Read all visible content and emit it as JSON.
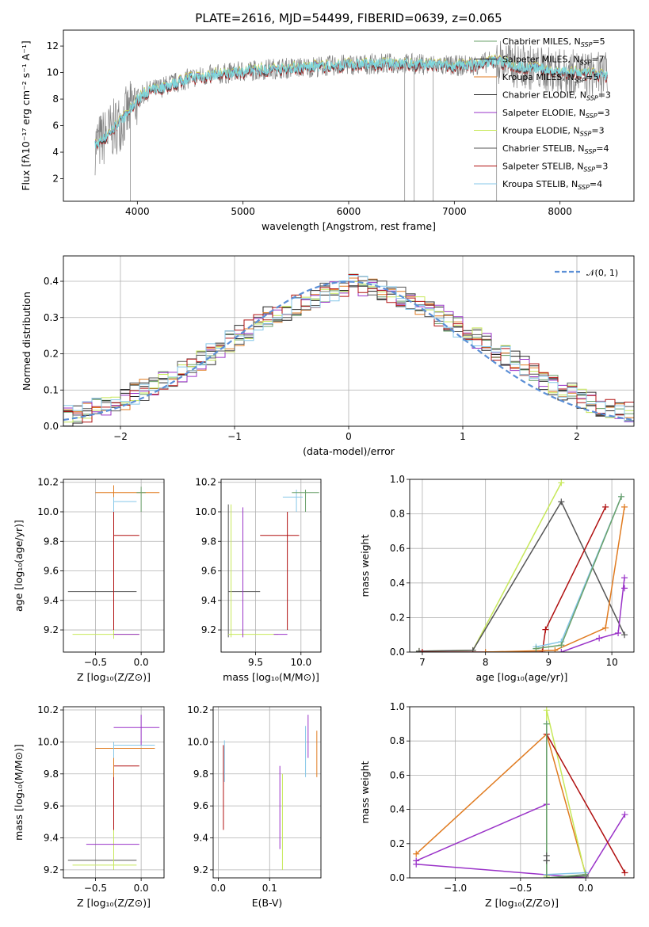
{
  "figure": {
    "title": "PLATE=2616, MJD=54499, FIBERID=0639, z=0.065"
  },
  "colors": [
    "#6aa06a",
    "#1f1f1f",
    "#e07b20",
    "#2b2b2b",
    "#9a33c8",
    "#c7e85a",
    "#555555",
    "#b01010",
    "#86c7e8"
  ],
  "chart_data": [
    {
      "id": "spectrum",
      "type": "line",
      "xlabel": "wavelength [Angstrom, rest frame]",
      "ylabel": "Flux [fλ10⁻¹⁷ erg cm⁻² s⁻¹ A⁻¹]",
      "xlim": [
        3300,
        8700
      ],
      "ylim": [
        0.3,
        13.2
      ],
      "xticks": [
        4000,
        5000,
        6000,
        7000,
        8000
      ],
      "yticks": [
        2,
        4,
        6,
        8,
        10,
        12
      ],
      "grid": false,
      "legend_position": "right",
      "legend": [
        "Chabrier MILES, N_SSP=5",
        "Salpeter MILES, N_SSP=7",
        "Kroupa MILES, N_SSP=5",
        "Chabrier ELODIE, N_SSP=3",
        "Salpeter ELODIE, N_SSP=3",
        "Kroupa ELODIE, N_SSP=3",
        "Chabrier STELIB, N_SSP=4",
        "Salpeter STELIB, N_SSP=3",
        "Kroupa STELIB, N_SSP=4"
      ],
      "data_color": "#808080",
      "model_color": "#7fd6dc",
      "continuum": {
        "x": [
          3600,
          3700,
          3800,
          3900,
          4000,
          4100,
          4200,
          4300,
          4400,
          4500,
          4700,
          5000,
          5300,
          5600,
          6000,
          6500,
          7000,
          7200,
          7400,
          7600,
          8000,
          8400
        ],
        "y": [
          4.5,
          5.2,
          6.0,
          6.8,
          8.0,
          8.6,
          8.8,
          9.1,
          9.3,
          9.6,
          9.8,
          10.1,
          10.3,
          10.4,
          10.6,
          10.7,
          10.5,
          10.6,
          10.9,
          10.5,
          10.1,
          9.8
        ]
      }
    },
    {
      "id": "residuals",
      "type": "histogram",
      "xlabel": "(data-model)/error",
      "ylabel": "Normed distribution",
      "xlim": [
        -2.5,
        2.5
      ],
      "ylim": [
        0,
        0.47
      ],
      "xticks": [
        -2,
        -1,
        0,
        1,
        2
      ],
      "xtick_labels": [
        "−2",
        "−1",
        "0",
        "1",
        "2"
      ],
      "yticks": [
        0.0,
        0.1,
        0.2,
        0.3,
        0.4
      ],
      "grid": true,
      "legend": "𝒩(0, 1)",
      "legend_position": "top-right",
      "gaussian_color": "#5b8fd6",
      "hist_base": [
        0.03,
        0.035,
        0.04,
        0.05,
        0.055,
        0.06,
        0.075,
        0.09,
        0.1,
        0.115,
        0.125,
        0.14,
        0.15,
        0.165,
        0.18,
        0.2,
        0.215,
        0.235,
        0.25,
        0.265,
        0.28,
        0.3,
        0.31,
        0.32,
        0.335,
        0.345,
        0.355,
        0.365,
        0.375,
        0.38,
        0.39,
        0.385,
        0.38,
        0.375,
        0.37,
        0.36,
        0.345,
        0.335,
        0.32,
        0.305,
        0.29,
        0.275,
        0.26,
        0.245,
        0.23,
        0.21,
        0.195,
        0.18,
        0.165,
        0.15,
        0.13,
        0.115,
        0.1,
        0.09,
        0.075,
        0.065,
        0.055,
        0.05,
        0.045,
        0.04
      ]
    },
    {
      "id": "z-age",
      "type": "errorbar",
      "xlabel": "Z [log₁₀(Z/Z⊙)]",
      "ylabel": "age  [log₁₀(age/yr)]",
      "xlim": [
        -0.85,
        0.25
      ],
      "ylim": [
        9.05,
        10.22
      ],
      "xticks": [
        -0.5,
        0.0
      ],
      "xtick_labels": [
        "−0.5",
        "0.0"
      ],
      "yticks": [
        9.2,
        9.4,
        9.6,
        9.8,
        10.0,
        10.2
      ],
      "grid": true,
      "points": [
        {
          "x": -0.3,
          "y": 9.46,
          "xlo": -0.8,
          "xhi": -0.05,
          "ylo": 9.46,
          "yhi": 9.46,
          "c": 6
        },
        {
          "x": -0.3,
          "y": 9.17,
          "xlo": -0.75,
          "xhi": -0.02,
          "ylo": 9.14,
          "yhi": 9.2,
          "c": 5
        },
        {
          "x": -0.3,
          "y": 9.84,
          "xlo": -0.3,
          "xhi": -0.02,
          "ylo": 9.2,
          "yhi": 10.0,
          "c": 7
        },
        {
          "x": -0.3,
          "y": 10.13,
          "xlo": -0.5,
          "xhi": 0.2,
          "ylo": 10.03,
          "yhi": 10.18,
          "c": 2
        },
        {
          "x": -0.3,
          "y": 10.07,
          "xlo": -0.3,
          "xhi": -0.05,
          "ylo": 10.0,
          "yhi": 10.1,
          "c": 8
        },
        {
          "x": -0.3,
          "y": 9.17,
          "xlo": -0.3,
          "xhi": -0.02,
          "ylo": 9.17,
          "yhi": 9.17,
          "c": 4
        },
        {
          "x": 0.0,
          "y": 10.13,
          "xlo": -0.05,
          "xhi": 0.05,
          "ylo": 10.0,
          "yhi": 10.17,
          "c": 0
        }
      ]
    },
    {
      "id": "mass-age",
      "type": "errorbar",
      "xlabel": "mass [log₁₀(M/M⊙)]",
      "xlim": [
        9.12,
        10.22
      ],
      "ylim": [
        9.05,
        10.22
      ],
      "xticks": [
        9.5,
        10.0
      ],
      "xtick_labels": [
        "9.5",
        "10.0"
      ],
      "yticks": [
        9.2,
        9.4,
        9.6,
        9.8,
        10.0,
        10.2
      ],
      "grid": true,
      "points": [
        {
          "x": 9.2,
          "y": 9.46,
          "xlo": 9.2,
          "xhi": 9.55,
          "ylo": 9.15,
          "yhi": 10.05,
          "c": 6
        },
        {
          "x": 9.23,
          "y": 9.17,
          "xlo": 9.2,
          "xhi": 9.75,
          "ylo": 9.15,
          "yhi": 10.05,
          "c": 5
        },
        {
          "x": 9.85,
          "y": 9.84,
          "xlo": 9.55,
          "xhi": 9.98,
          "ylo": 9.2,
          "yhi": 10.0,
          "c": 7
        },
        {
          "x": 9.36,
          "y": 9.17,
          "xlo": 9.36,
          "xhi": 9.36,
          "ylo": 9.15,
          "yhi": 10.03,
          "c": 4
        },
        {
          "x": 9.8,
          "y": 9.17,
          "xlo": 9.7,
          "xhi": 9.85,
          "ylo": 9.17,
          "yhi": 9.17,
          "c": 4
        },
        {
          "x": 9.95,
          "y": 10.1,
          "xlo": 9.8,
          "xhi": 10.02,
          "ylo": 10.0,
          "yhi": 10.15,
          "c": 8
        },
        {
          "x": 10.05,
          "y": 10.13,
          "xlo": 9.9,
          "xhi": 10.2,
          "ylo": 10.0,
          "yhi": 10.15,
          "c": 0
        }
      ]
    },
    {
      "id": "age-weight",
      "type": "line",
      "xlabel": "age  [log₁₀(age/yr)]",
      "ylabel": "mass weight",
      "xlim": [
        6.8,
        10.35
      ],
      "ylim": [
        0.0,
        1.0
      ],
      "xticks": [
        7,
        8,
        9,
        10
      ],
      "yticks": [
        0.0,
        0.2,
        0.4,
        0.6,
        0.8,
        1.0
      ],
      "grid": true,
      "series": [
        {
          "c": 5,
          "x": [
            6.95,
            7.8,
            9.2
          ],
          "y": [
            0.005,
            0.01,
            0.98
          ]
        },
        {
          "c": 6,
          "x": [
            6.95,
            7.8,
            9.2,
            10.2
          ],
          "y": [
            0.005,
            0.01,
            0.87,
            0.1
          ]
        },
        {
          "c": 7,
          "x": [
            7.0,
            8.9,
            8.95,
            9.9
          ],
          "y": [
            0.0,
            0.0,
            0.13,
            0.84
          ]
        },
        {
          "c": 2,
          "x": [
            8.0,
            9.1,
            9.9,
            10.2
          ],
          "y": [
            0.0,
            0.01,
            0.14,
            0.84
          ]
        },
        {
          "c": 8,
          "x": [
            8.8,
            9.2,
            10.15
          ],
          "y": [
            0.03,
            0.06,
            0.9
          ]
        },
        {
          "c": 0,
          "x": [
            8.8,
            9.2,
            10.15
          ],
          "y": [
            0.02,
            0.04,
            0.9
          ]
        },
        {
          "c": 4,
          "x": [
            9.2,
            9.8,
            10.1,
            10.2
          ],
          "y": [
            0.0,
            0.08,
            0.11,
            0.43
          ]
        },
        {
          "c": 4,
          "x": [
            10.2
          ],
          "y": [
            0.37
          ]
        }
      ]
    },
    {
      "id": "z-mass",
      "type": "errorbar",
      "xlabel": "Z [log₁₀(Z/Z⊙)]",
      "ylabel": "mass [log₁₀(M/M⊙)]",
      "xlim": [
        -0.85,
        0.25
      ],
      "ylim": [
        9.15,
        10.22
      ],
      "xticks": [
        -0.5,
        0.0
      ],
      "xtick_labels": [
        "−0.5",
        "0.0"
      ],
      "yticks": [
        9.2,
        9.4,
        9.6,
        9.8,
        10.0,
        10.2
      ],
      "grid": true,
      "points": [
        {
          "x": -0.3,
          "y": 9.26,
          "xlo": -0.8,
          "xhi": -0.05,
          "ylo": 9.2,
          "yhi": 9.95,
          "c": 6
        },
        {
          "x": -0.3,
          "y": 9.23,
          "xlo": -0.75,
          "xhi": -0.05,
          "ylo": 9.2,
          "yhi": 9.95,
          "c": 5
        },
        {
          "x": -0.3,
          "y": 9.36,
          "xlo": -0.6,
          "xhi": -0.02,
          "ylo": 9.36,
          "yhi": 9.36,
          "c": 4
        },
        {
          "x": -0.3,
          "y": 9.85,
          "xlo": -0.3,
          "xhi": -0.02,
          "ylo": 9.45,
          "yhi": 9.85,
          "c": 7
        },
        {
          "x": -0.3,
          "y": 9.96,
          "xlo": -0.5,
          "xhi": 0.15,
          "ylo": 9.78,
          "yhi": 9.98,
          "c": 2
        },
        {
          "x": -0.3,
          "y": 9.98,
          "xlo": -0.3,
          "xhi": 0.15,
          "ylo": 9.9,
          "yhi": 10.0,
          "c": 8
        },
        {
          "x": 0.0,
          "y": 10.09,
          "xlo": -0.3,
          "xhi": 0.2,
          "ylo": 9.98,
          "yhi": 10.17,
          "c": 4
        }
      ]
    },
    {
      "id": "ebv-mass",
      "type": "errorbar",
      "xlabel": "E(B-V)",
      "xlim": [
        -0.01,
        0.2
      ],
      "ylim": [
        9.15,
        10.22
      ],
      "xticks": [
        0.0,
        0.1
      ],
      "xtick_labels": [
        "0.0",
        "0.1"
      ],
      "yticks": [
        9.2,
        9.4,
        9.6,
        9.8,
        10.0,
        10.2
      ],
      "grid": true,
      "points": [
        {
          "x": 0.01,
          "y": 9.85,
          "xlo": 0.01,
          "xhi": 0.01,
          "ylo": 9.45,
          "yhi": 9.98,
          "c": 7
        },
        {
          "x": 0.012,
          "y": 9.9,
          "xlo": 0.012,
          "xhi": 0.012,
          "ylo": 9.75,
          "yhi": 10.01,
          "c": 8
        },
        {
          "x": 0.12,
          "y": 9.6,
          "xlo": 0.12,
          "xhi": 0.12,
          "ylo": 9.33,
          "yhi": 9.85,
          "c": 4
        },
        {
          "x": 0.125,
          "y": 9.5,
          "xlo": 0.125,
          "xhi": 0.125,
          "ylo": 9.2,
          "yhi": 9.8,
          "c": 5
        },
        {
          "x": 0.17,
          "y": 9.95,
          "xlo": 0.17,
          "xhi": 0.17,
          "ylo": 9.78,
          "yhi": 10.1,
          "c": 8
        },
        {
          "x": 0.175,
          "y": 10.05,
          "xlo": 0.175,
          "xhi": 0.175,
          "ylo": 9.9,
          "yhi": 10.17,
          "c": 4
        },
        {
          "x": 0.192,
          "y": 9.9,
          "xlo": 0.192,
          "xhi": 0.192,
          "ylo": 9.78,
          "yhi": 10.07,
          "c": 2
        }
      ]
    },
    {
      "id": "z-weight",
      "type": "line",
      "xlabel": "Z [log₁₀(Z/Z⊙)]",
      "ylabel": "mass weight",
      "xlim": [
        -1.35,
        0.37
      ],
      "ylim": [
        0.0,
        1.0
      ],
      "xticks": [
        -1.0,
        -0.5,
        0.0
      ],
      "xtick_labels": [
        "−1.0",
        "−0.5",
        "0.0"
      ],
      "yticks": [
        0.0,
        0.2,
        0.4,
        0.6,
        0.8,
        1.0
      ],
      "grid": true,
      "series": [
        {
          "c": 2,
          "x": [
            -1.3,
            -0.3,
            0.0
          ],
          "y": [
            0.14,
            0.84,
            0.02
          ]
        },
        {
          "c": 4,
          "x": [
            -1.3,
            -0.3
          ],
          "y": [
            0.1,
            0.43
          ]
        },
        {
          "c": 4,
          "x": [
            -1.3,
            0.0,
            0.3
          ],
          "y": [
            0.08,
            0.0,
            0.37
          ]
        },
        {
          "c": 5,
          "x": [
            -0.3,
            -0.3,
            0.0
          ],
          "y": [
            0.01,
            0.98,
            0.01
          ]
        },
        {
          "c": 6,
          "x": [
            -0.3,
            -0.3,
            0.0
          ],
          "y": [
            0.1,
            0.0,
            0.01
          ]
        },
        {
          "c": 7,
          "x": [
            -0.3,
            0.3
          ],
          "y": [
            0.84,
            0.03
          ]
        },
        {
          "c": 8,
          "x": [
            -0.3,
            -0.3,
            0.0
          ],
          "y": [
            0.9,
            0.02,
            0.03
          ]
        },
        {
          "c": 0,
          "x": [
            -0.3,
            -0.3,
            0.0
          ],
          "y": [
            0.9,
            0.0,
            0.02
          ]
        },
        {
          "c": 6,
          "x": [
            -0.3,
            -0.3
          ],
          "y": [
            0.13,
            0.1
          ]
        }
      ]
    }
  ]
}
